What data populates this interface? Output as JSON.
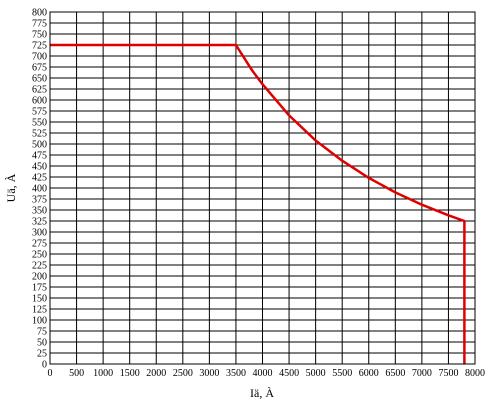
{
  "chart_data": {
    "type": "line",
    "title": "",
    "xlabel": "Iä, À",
    "ylabel": "Uä, À",
    "xlim": [
      0,
      8000
    ],
    "ylim": [
      0,
      800
    ],
    "xticks": [
      0,
      500,
      1000,
      1500,
      2000,
      2500,
      3000,
      3500,
      4000,
      4500,
      5000,
      5500,
      6000,
      6500,
      7000,
      7500,
      8000
    ],
    "yticks": [
      0,
      25,
      50,
      75,
      100,
      125,
      150,
      175,
      200,
      225,
      250,
      275,
      300,
      325,
      350,
      375,
      400,
      425,
      450,
      475,
      500,
      525,
      550,
      575,
      600,
      625,
      650,
      675,
      700,
      725,
      750,
      775,
      800
    ],
    "xtick_labels": [
      "0",
      "500",
      "1000",
      "1500",
      "2000",
      "2500",
      "3000",
      "3500",
      "4000",
      "4500",
      "5000",
      "5500",
      "6000",
      "6500",
      "7000",
      "7500",
      "8000"
    ],
    "ytick_labels": [
      "0",
      "25",
      "50",
      "75",
      "100",
      "125",
      "150",
      "175",
      "200",
      "225",
      "250",
      "275",
      "300",
      "325",
      "350",
      "375",
      "400",
      "425",
      "450",
      "475",
      "500",
      "525",
      "550",
      "575",
      "600",
      "625",
      "650",
      "675",
      "700",
      "725",
      "750",
      "775",
      "800"
    ],
    "grid": true,
    "series": [
      {
        "color": "#e00000",
        "x": [
          0,
          3500,
          3800,
          4000,
          4500,
          5000,
          5500,
          6000,
          6500,
          7000,
          7500,
          7800,
          7800
        ],
        "y": [
          725,
          725,
          668,
          636,
          565,
          508,
          462,
          423,
          390,
          362,
          338,
          325,
          0
        ]
      }
    ]
  }
}
